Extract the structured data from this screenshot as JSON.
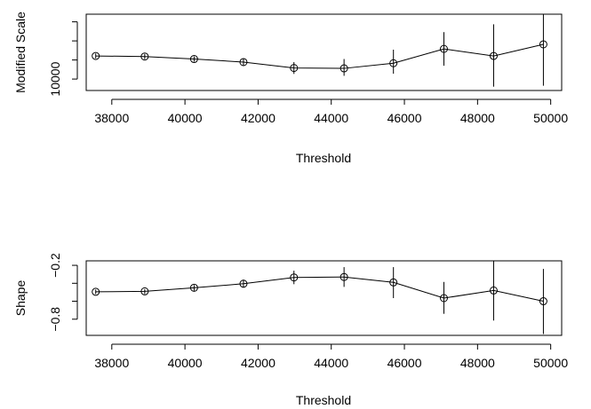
{
  "chart_data": [
    {
      "type": "scatter",
      "ylabel": "Modified Scale",
      "xlabel": "Threshold",
      "xlim": [
        37300,
        50300
      ],
      "ylim": [
        4000,
        44000
      ],
      "x_ticks": [
        38000,
        40000,
        42000,
        44000,
        46000,
        48000,
        50000
      ],
      "y_ticks": [
        10000,
        20000,
        30000,
        40000
      ],
      "y_tick_labels": [
        "10000",
        "",
        "",
        ""
      ],
      "series": [
        {
          "x": [
            37560,
            38900,
            40250,
            41600,
            42980,
            44350,
            45700,
            47080,
            48440,
            49800
          ],
          "y": [
            22100,
            21800,
            20500,
            18900,
            15800,
            15600,
            18300,
            25800,
            22100,
            28200
          ],
          "lower": [
            20800,
            20400,
            19100,
            17000,
            12700,
            11700,
            12800,
            17000,
            6000,
            6500
          ],
          "upper": [
            23400,
            23200,
            21900,
            20800,
            18900,
            20500,
            25400,
            34600,
            38700,
            43900
          ]
        }
      ]
    },
    {
      "type": "scatter",
      "ylabel": "Shape",
      "xlabel": "Threshold",
      "xlim": [
        37300,
        50300
      ],
      "ylim": [
        -0.98,
        -0.15
      ],
      "x_ticks": [
        38000,
        40000,
        42000,
        44000,
        46000,
        48000,
        50000
      ],
      "y_ticks": [
        -0.8,
        -0.6,
        -0.4,
        -0.2
      ],
      "y_tick_labels": [
        "−0.8",
        "",
        "",
        "−0.2"
      ],
      "series": [
        {
          "x": [
            37560,
            38900,
            40250,
            41600,
            42980,
            44350,
            45700,
            47080,
            48440,
            49800
          ],
          "y": [
            -0.495,
            -0.49,
            -0.45,
            -0.405,
            -0.335,
            -0.33,
            -0.39,
            -0.565,
            -0.48,
            -0.6
          ],
          "lower": [
            -0.52,
            -0.52,
            -0.485,
            -0.45,
            -0.41,
            -0.44,
            -0.565,
            -0.74,
            -0.815,
            -0.965
          ],
          "upper": [
            -0.47,
            -0.465,
            -0.42,
            -0.36,
            -0.26,
            -0.22,
            -0.22,
            -0.385,
            -0.15,
            -0.24
          ]
        }
      ]
    }
  ]
}
